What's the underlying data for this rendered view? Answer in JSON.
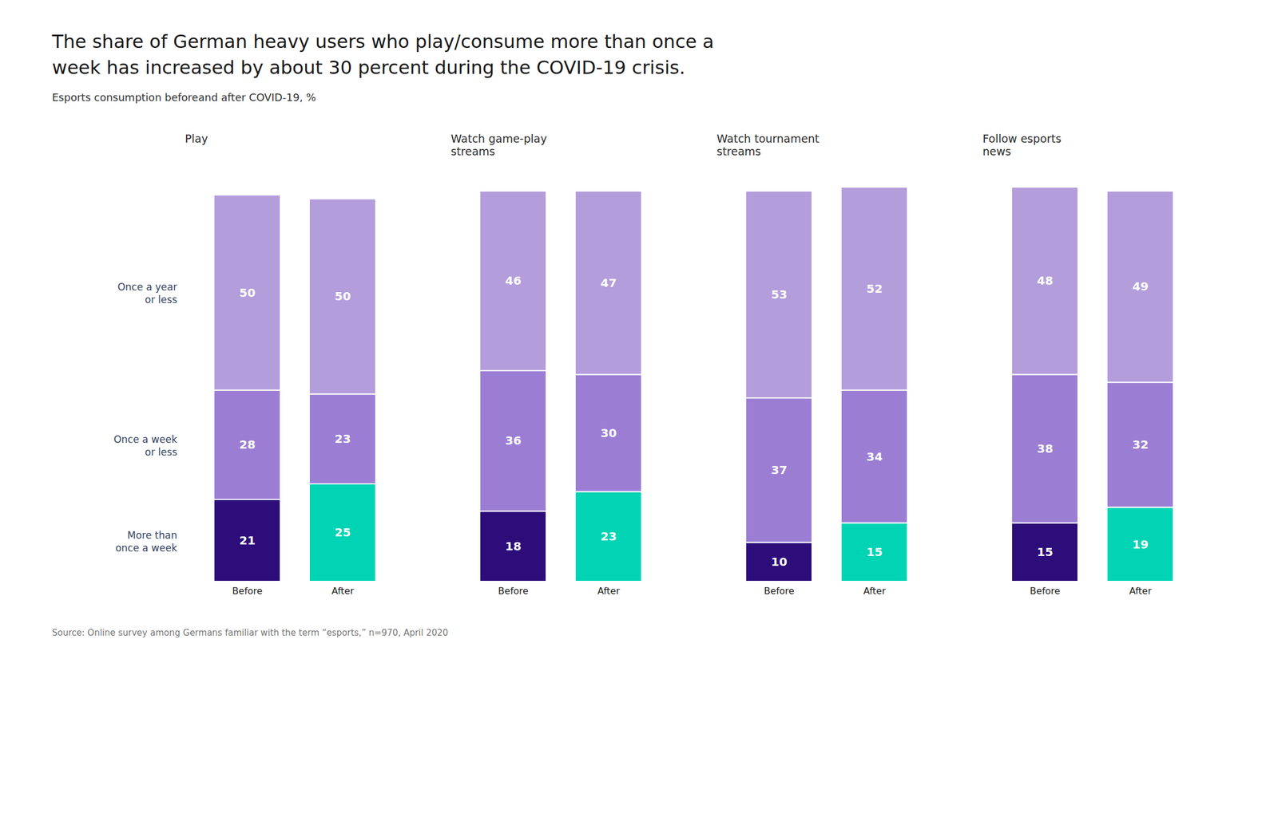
{
  "title": "The share of German heavy users who play/consume more than once a\nweek has increased by about 30 percent during the COVID-19 crisis.",
  "subtitle": "Esports consumption beforeand after COVID-19, %",
  "source": "Source: Online survey among Germans familiar with the term “esports,” n=970, April 2020",
  "chart_data": [
    {
      "type": "bar",
      "stacked": true,
      "data_labels": true,
      "tick_labels": "x",
      "grid": false,
      "title": "Play",
      "categories": [
        "Before",
        "After"
      ],
      "ylim": [
        0,
        105
      ],
      "series": [
        {
          "name": "More than\nonce a week",
          "color": "#2d0d7a",
          "colors": [
            "#2d0d7a",
            "#00d4b4"
          ],
          "values": [
            21,
            25
          ]
        },
        {
          "name": "Once a week\nor less",
          "color": "#9b7ed4",
          "values": [
            28,
            23
          ]
        },
        {
          "name": "Once a year\nor less",
          "color": "#b39ddb",
          "values": [
            50,
            50
          ]
        }
      ]
    },
    {
      "type": "bar",
      "stacked": true,
      "data_labels": true,
      "tick_labels": "x",
      "grid": false,
      "title": "Watch game-play\nstreams",
      "categories": [
        "Before",
        "After"
      ],
      "ylim": [
        0,
        105
      ],
      "series": [
        {
          "name": "More than\nonce a week",
          "color": "#2d0d7a",
          "colors": [
            "#2d0d7a",
            "#00d4b4"
          ],
          "values": [
            18,
            23
          ]
        },
        {
          "name": "Once a week\nor less",
          "color": "#9b7ed4",
          "values": [
            36,
            30
          ]
        },
        {
          "name": "Once a year\nor less",
          "color": "#b39ddb",
          "values": [
            46,
            47
          ]
        }
      ]
    },
    {
      "type": "bar",
      "stacked": true,
      "data_labels": true,
      "tick_labels": "x",
      "grid": false,
      "title": "Watch tournament\nstreams",
      "categories": [
        "Before",
        "After"
      ],
      "ylim": [
        0,
        105
      ],
      "series": [
        {
          "name": "More than\nonce a week",
          "color": "#2d0d7a",
          "colors": [
            "#2d0d7a",
            "#00d4b4"
          ],
          "values": [
            10,
            15
          ]
        },
        {
          "name": "Once a week\nor less",
          "color": "#9b7ed4",
          "values": [
            37,
            34
          ]
        },
        {
          "name": "Once a year\nor less",
          "color": "#b39ddb",
          "values": [
            53,
            52
          ]
        }
      ]
    },
    {
      "type": "bar",
      "stacked": true,
      "data_labels": true,
      "tick_labels": "x",
      "grid": false,
      "title": "Follow esports\nnews",
      "categories": [
        "Before",
        "After"
      ],
      "ylim": [
        0,
        105
      ],
      "series": [
        {
          "name": "More than\nonce a week",
          "color": "#2d0d7a",
          "colors": [
            "#2d0d7a",
            "#00d4b4"
          ],
          "values": [
            15,
            19
          ]
        },
        {
          "name": "Once a week\nor less",
          "color": "#9b7ed4",
          "values": [
            38,
            32
          ]
        },
        {
          "name": "Once a year\nor less",
          "color": "#b39ddb",
          "values": [
            48,
            49
          ]
        }
      ]
    }
  ]
}
